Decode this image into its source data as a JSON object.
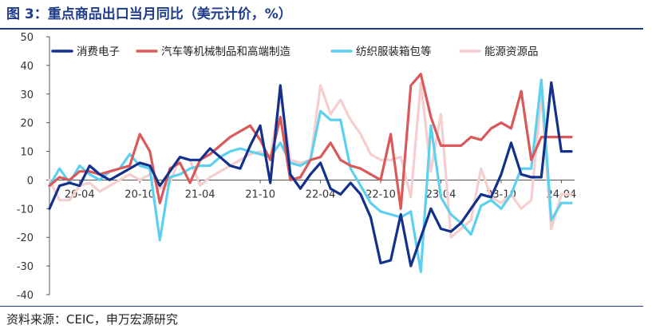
{
  "title": "图 3：重点商品出口当月同比（美元计价，%）",
  "source": "资料来源：CEIC，申万宏源研究",
  "chart_data": {
    "type": "line",
    "ylim": [
      -40,
      50
    ],
    "yticks": [
      -40,
      -30,
      -20,
      -10,
      0,
      10,
      20,
      30,
      40,
      50
    ],
    "xticks": [
      "20-04",
      "20-10",
      "21-04",
      "21-10",
      "22-04",
      "22-10",
      "23-04",
      "23-10",
      "24-04"
    ],
    "x": [
      "20-01",
      "20-02",
      "20-03",
      "20-04",
      "20-05",
      "20-06",
      "20-07",
      "20-08",
      "20-09",
      "20-10",
      "20-11",
      "20-12",
      "21-01",
      "21-02",
      "21-03",
      "21-04",
      "21-05",
      "21-06",
      "21-07",
      "21-08",
      "21-09",
      "21-10",
      "21-11",
      "21-12",
      "22-01",
      "22-02",
      "22-03",
      "22-04",
      "22-05",
      "22-06",
      "22-07",
      "22-08",
      "22-09",
      "22-10",
      "22-11",
      "22-12",
      "23-01",
      "23-02",
      "23-03",
      "23-04",
      "23-05",
      "23-06",
      "23-07",
      "23-08",
      "23-09",
      "23-10",
      "23-11",
      "23-12",
      "24-01",
      "24-02",
      "24-03",
      "24-04",
      "24-05"
    ],
    "legend_position": "top",
    "grid": false,
    "series": [
      {
        "name": "消费电子",
        "color": "#13318a",
        "values": [
          -10,
          -2,
          -1,
          -2,
          5,
          2,
          0,
          2,
          4,
          6,
          5,
          -2,
          3,
          8,
          7,
          7,
          11,
          8,
          5,
          4,
          12,
          19,
          -1,
          33,
          2,
          -3,
          2,
          6,
          -3,
          -5,
          -1,
          -5,
          -13,
          -29,
          -28,
          -12,
          -30,
          -20,
          -10,
          -17,
          -18,
          -15,
          -10,
          -5,
          -6,
          2,
          13,
          2,
          1,
          1,
          34,
          10,
          10
        ]
      },
      {
        "name": "汽车等机械制品和高端制造",
        "color": "#d9595a",
        "values": [
          -2,
          1,
          0,
          3,
          3,
          2,
          3,
          4,
          5,
          16,
          10,
          -8,
          4,
          6,
          -1,
          7,
          9,
          12,
          15,
          17,
          19,
          14,
          7,
          22,
          0,
          1,
          7,
          8,
          13,
          7,
          5,
          4,
          2,
          0,
          16,
          -10,
          33,
          37,
          22,
          12,
          12,
          12,
          15,
          14,
          18,
          20,
          18,
          31,
          7,
          15,
          15,
          15,
          15
        ]
      },
      {
        "name": "纺织服装箱包等",
        "color": "#5dd0ee",
        "values": [
          -2,
          4,
          -1,
          5,
          2,
          0,
          3,
          4,
          9,
          5,
          4,
          -21,
          1,
          2,
          4,
          5,
          5,
          8,
          10,
          11,
          10,
          9,
          8,
          13,
          6,
          5,
          7,
          24,
          21,
          21,
          4,
          -2,
          -8,
          -11,
          -12,
          -13,
          -11,
          -32,
          19,
          -6,
          -12,
          -15,
          -19,
          -9,
          -7,
          -10,
          -5,
          4,
          4,
          35,
          -14,
          -8,
          -8
        ]
      },
      {
        "name": "能源资源品",
        "color": "#f5cfd0",
        "values": [
          0,
          -7,
          -7,
          -2,
          -1,
          -4,
          -2,
          0,
          2,
          0,
          2,
          -3,
          -1,
          8,
          7,
          -2,
          1,
          3,
          5,
          7,
          9,
          10,
          8,
          30,
          7,
          6,
          7,
          33,
          23,
          28,
          21,
          16,
          9,
          7,
          7,
          8,
          -6,
          34,
          3,
          23,
          -20,
          -17,
          -14,
          4,
          -6,
          -8,
          -5,
          -10,
          -7,
          30,
          -17,
          -5,
          -5
        ]
      }
    ]
  }
}
